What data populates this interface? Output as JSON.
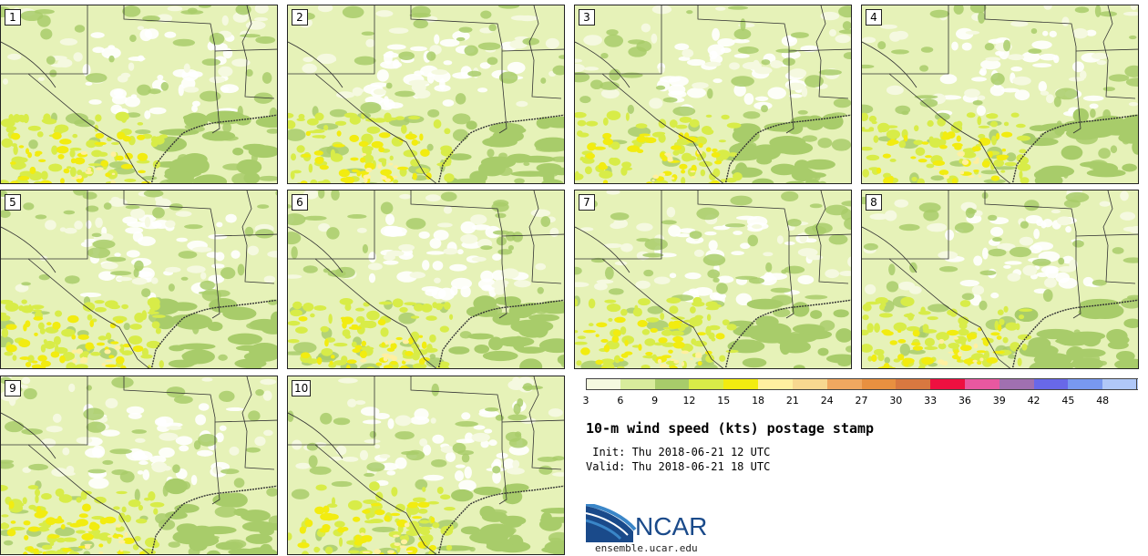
{
  "panels": [
    {
      "label": "1"
    },
    {
      "label": "2"
    },
    {
      "label": "3"
    },
    {
      "label": "4"
    },
    {
      "label": "5"
    },
    {
      "label": "6"
    },
    {
      "label": "7"
    },
    {
      "label": "8"
    },
    {
      "label": "9"
    },
    {
      "label": "10"
    }
  ],
  "colorbar": {
    "levels": [
      "3",
      "6",
      "9",
      "12",
      "15",
      "18",
      "21",
      "24",
      "27",
      "30",
      "33",
      "36",
      "39",
      "42",
      "45",
      "48"
    ],
    "colors": [
      "#f5f9e0",
      "#d8ec9c",
      "#a8cc6a",
      "#d8ec48",
      "#f2ec10",
      "#fff0a0",
      "#f8d890",
      "#f0a860",
      "#e89040",
      "#d87840",
      "#ee1040",
      "#e858a0",
      "#a070b0",
      "#6868e8",
      "#7898f0",
      "#b0c8f8"
    ]
  },
  "title": "10-m wind speed (kts) postage stamp",
  "init_line": " Init: Thu 2018-06-21 12 UTC",
  "valid_line": "Valid: Thu 2018-06-21 18 UTC",
  "logo": {
    "text": "NCAR",
    "colors": {
      "dark": "#1a4a8a",
      "light": "#3a86c8"
    }
  },
  "site": "ensemble.ucar.edu",
  "map_colors": {
    "base": "#e6f2b8",
    "calm": "#ffffff",
    "light": "#f5f9e0",
    "moderate": "#a8cc6a",
    "breezy": "#d8ec48",
    "strong": "#f2ec10",
    "gust": "#fff0a0",
    "lines": "#333333"
  }
}
